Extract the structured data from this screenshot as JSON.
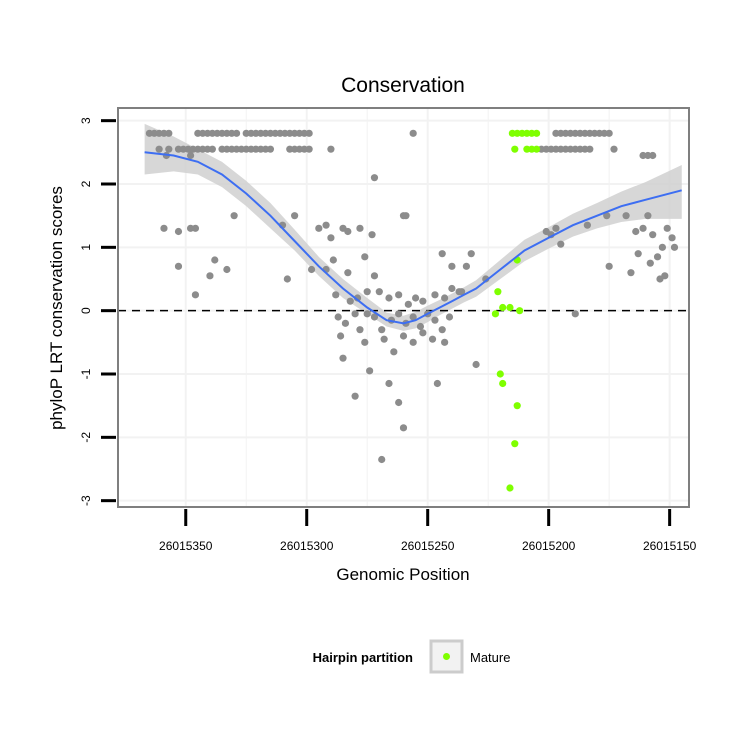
{
  "chart_data": {
    "type": "scatter",
    "title": "Conservation",
    "xlabel": "Genomic Position",
    "ylabel": "phyloP LRT conservation scores",
    "x_reversed": true,
    "xlim": [
      26015378,
      26015142
    ],
    "ylim": [
      -3.1,
      3.2
    ],
    "x_ticks": [
      26015350,
      26015300,
      26015250,
      26015200,
      26015150
    ],
    "x_tick_labels": [
      "26015350",
      "26015300",
      "26015250",
      "26015200",
      "26015150"
    ],
    "y_ticks": [
      -3,
      -2,
      -1,
      0,
      1,
      2,
      3
    ],
    "y_tick_labels": [
      "-3",
      "-2",
      "-1",
      "0",
      "1",
      "2",
      "3"
    ],
    "reference_line": {
      "y": 0,
      "style": "dashed"
    },
    "colors": {
      "hairpin": "#8c8c8c",
      "mature": "#7fff00",
      "smooth_line": "#3d6ef2",
      "ribbon": "#d0d0d0",
      "panel_border": "#7f7f7f",
      "grid": "#f2f2f2"
    },
    "legend": {
      "title": "Hairpin partition",
      "entries": [
        {
          "label": "Mature",
          "color": "#7fff00"
        }
      ],
      "position": "bottom"
    },
    "series": [
      {
        "name": "Hairpin",
        "points": [
          [
            26015365,
            2.8
          ],
          [
            26015363,
            2.8
          ],
          [
            26015361,
            2.8
          ],
          [
            26015359,
            2.8
          ],
          [
            26015357,
            2.8
          ],
          [
            26015345,
            2.8
          ],
          [
            26015343,
            2.8
          ],
          [
            26015341,
            2.8
          ],
          [
            26015339,
            2.8
          ],
          [
            26015337,
            2.8
          ],
          [
            26015335,
            2.8
          ],
          [
            26015333,
            2.8
          ],
          [
            26015331,
            2.8
          ],
          [
            26015329,
            2.8
          ],
          [
            26015325,
            2.8
          ],
          [
            26015323,
            2.8
          ],
          [
            26015321,
            2.8
          ],
          [
            26015319,
            2.8
          ],
          [
            26015317,
            2.8
          ],
          [
            26015315,
            2.8
          ],
          [
            26015313,
            2.8
          ],
          [
            26015311,
            2.8
          ],
          [
            26015309,
            2.8
          ],
          [
            26015307,
            2.8
          ],
          [
            26015305,
            2.8
          ],
          [
            26015303,
            2.8
          ],
          [
            26015301,
            2.8
          ],
          [
            26015299,
            2.8
          ],
          [
            26015256,
            2.8
          ],
          [
            26015197,
            2.8
          ],
          [
            26015195,
            2.8
          ],
          [
            26015193,
            2.8
          ],
          [
            26015191,
            2.8
          ],
          [
            26015189,
            2.8
          ],
          [
            26015187,
            2.8
          ],
          [
            26015185,
            2.8
          ],
          [
            26015183,
            2.8
          ],
          [
            26015181,
            2.8
          ],
          [
            26015179,
            2.8
          ],
          [
            26015177,
            2.8
          ],
          [
            26015175,
            2.8
          ],
          [
            26015361,
            2.55
          ],
          [
            26015357,
            2.55
          ],
          [
            26015353,
            2.55
          ],
          [
            26015351,
            2.55
          ],
          [
            26015349,
            2.55
          ],
          [
            26015347,
            2.55
          ],
          [
            26015345,
            2.55
          ],
          [
            26015343,
            2.55
          ],
          [
            26015341,
            2.55
          ],
          [
            26015339,
            2.55
          ],
          [
            26015335,
            2.55
          ],
          [
            26015333,
            2.55
          ],
          [
            26015331,
            2.55
          ],
          [
            26015329,
            2.55
          ],
          [
            26015327,
            2.55
          ],
          [
            26015325,
            2.55
          ],
          [
            26015323,
            2.55
          ],
          [
            26015321,
            2.55
          ],
          [
            26015319,
            2.55
          ],
          [
            26015317,
            2.55
          ],
          [
            26015315,
            2.55
          ],
          [
            26015307,
            2.55
          ],
          [
            26015305,
            2.55
          ],
          [
            26015303,
            2.55
          ],
          [
            26015301,
            2.55
          ],
          [
            26015299,
            2.55
          ],
          [
            26015290,
            2.55
          ],
          [
            26015203,
            2.55
          ],
          [
            26015201,
            2.55
          ],
          [
            26015199,
            2.55
          ],
          [
            26015197,
            2.55
          ],
          [
            26015195,
            2.55
          ],
          [
            26015193,
            2.55
          ],
          [
            26015191,
            2.55
          ],
          [
            26015189,
            2.55
          ],
          [
            26015187,
            2.55
          ],
          [
            26015185,
            2.55
          ],
          [
            26015183,
            2.55
          ],
          [
            26015173,
            2.55
          ],
          [
            26015161,
            2.45
          ],
          [
            26015159,
            2.45
          ],
          [
            26015157,
            2.45
          ],
          [
            26015358,
            2.45
          ],
          [
            26015272,
            2.1
          ],
          [
            26015348,
            2.45
          ],
          [
            26015359,
            1.3
          ],
          [
            26015353,
            1.25
          ],
          [
            26015348,
            1.3
          ],
          [
            26015346,
            1.3
          ],
          [
            26015330,
            1.5
          ],
          [
            26015310,
            1.35
          ],
          [
            26015305,
            1.5
          ],
          [
            26015295,
            1.3
          ],
          [
            26015292,
            1.35
          ],
          [
            26015290,
            1.15
          ],
          [
            26015285,
            1.3
          ],
          [
            26015283,
            1.25
          ],
          [
            26015278,
            1.3
          ],
          [
            26015273,
            1.2
          ],
          [
            26015353,
            0.7
          ],
          [
            26015340,
            0.55
          ],
          [
            26015338,
            0.8
          ],
          [
            26015333,
            0.65
          ],
          [
            26015346,
            0.25
          ],
          [
            26015308,
            0.5
          ],
          [
            26015298,
            0.65
          ],
          [
            26015292,
            0.65
          ],
          [
            26015289,
            0.8
          ],
          [
            26015283,
            0.6
          ],
          [
            26015276,
            0.85
          ],
          [
            26015272,
            0.55
          ],
          [
            26015260,
            1.5
          ],
          [
            26015259,
            1.5
          ],
          [
            26015244,
            0.9
          ],
          [
            26015240,
            0.7
          ],
          [
            26015237,
            0.3
          ],
          [
            26015288,
            0.25
          ],
          [
            26015282,
            0.15
          ],
          [
            26015279,
            0.2
          ],
          [
            26015275,
            0.3
          ],
          [
            26015270,
            0.3
          ],
          [
            26015266,
            0.2
          ],
          [
            26015262,
            0.25
          ],
          [
            26015258,
            0.1
          ],
          [
            26015255,
            0.2
          ],
          [
            26015252,
            0.15
          ],
          [
            26015247,
            0.25
          ],
          [
            26015243,
            0.2
          ],
          [
            26015240,
            0.35
          ],
          [
            26015287,
            -0.1
          ],
          [
            26015284,
            -0.2
          ],
          [
            26015280,
            -0.05
          ],
          [
            26015278,
            -0.3
          ],
          [
            26015275,
            -0.05
          ],
          [
            26015272,
            -0.1
          ],
          [
            26015269,
            -0.3
          ],
          [
            26015265,
            -0.15
          ],
          [
            26015262,
            -0.05
          ],
          [
            26015259,
            -0.2
          ],
          [
            26015256,
            -0.1
          ],
          [
            26015253,
            -0.25
          ],
          [
            26015250,
            -0.05
          ],
          [
            26015247,
            -0.15
          ],
          [
            26015244,
            -0.3
          ],
          [
            26015241,
            -0.1
          ],
          [
            26015286,
            -0.4
          ],
          [
            26015276,
            -0.5
          ],
          [
            26015268,
            -0.45
          ],
          [
            26015264,
            -0.65
          ],
          [
            26015260,
            -0.4
          ],
          [
            26015256,
            -0.5
          ],
          [
            26015252,
            -0.35
          ],
          [
            26015248,
            -0.45
          ],
          [
            26015243,
            -0.5
          ],
          [
            26015285,
            -0.75
          ],
          [
            26015274,
            -0.95
          ],
          [
            26015266,
            -1.15
          ],
          [
            26015262,
            -1.45
          ],
          [
            26015260,
            -1.85
          ],
          [
            26015269,
            -2.35
          ],
          [
            26015280,
            -1.35
          ],
          [
            26015246,
            -1.15
          ],
          [
            26015230,
            -0.85
          ],
          [
            26015236,
            0.3
          ],
          [
            26015234,
            0.7
          ],
          [
            26015232,
            0.9
          ],
          [
            26015226,
            0.5
          ],
          [
            26015201,
            1.25
          ],
          [
            26015199,
            1.2
          ],
          [
            26015197,
            1.3
          ],
          [
            26015195,
            1.05
          ],
          [
            26015189,
            -0.05
          ],
          [
            26015184,
            1.35
          ],
          [
            26015176,
            1.5
          ],
          [
            26015175,
            0.7
          ],
          [
            26015168,
            1.5
          ],
          [
            26015166,
            0.6
          ],
          [
            26015164,
            1.25
          ],
          [
            26015161,
            1.3
          ],
          [
            26015159,
            1.5
          ],
          [
            26015157,
            1.2
          ],
          [
            26015155,
            0.85
          ],
          [
            26015153,
            1.0
          ],
          [
            26015151,
            1.3
          ],
          [
            26015149,
            1.15
          ],
          [
            26015148,
            1.0
          ],
          [
            26015163,
            0.9
          ],
          [
            26015158,
            0.75
          ],
          [
            26015154,
            0.5
          ],
          [
            26015152,
            0.55
          ]
        ]
      },
      {
        "name": "Mature",
        "points": [
          [
            26015215,
            2.8
          ],
          [
            26015213,
            2.8
          ],
          [
            26015211,
            2.8
          ],
          [
            26015209,
            2.8
          ],
          [
            26015207,
            2.8
          ],
          [
            26015205,
            2.8
          ],
          [
            26015214,
            2.55
          ],
          [
            26015209,
            2.55
          ],
          [
            26015207,
            2.55
          ],
          [
            26015205,
            2.55
          ],
          [
            26015213,
            0.8
          ],
          [
            26015221,
            0.3
          ],
          [
            26015219,
            0.05
          ],
          [
            26015216,
            0.05
          ],
          [
            26015212,
            0.0
          ],
          [
            26015222,
            -0.05
          ],
          [
            26015220,
            -1.0
          ],
          [
            26015219,
            -1.15
          ],
          [
            26015213,
            -1.5
          ],
          [
            26015214,
            -2.1
          ],
          [
            26015216,
            -2.8
          ]
        ]
      }
    ],
    "smooth_curve": {
      "x": [
        26015367,
        26015355,
        26015345,
        26015335,
        26015325,
        26015315,
        26015305,
        26015295,
        26015285,
        26015275,
        26015267,
        26015260,
        26015255,
        26015250,
        26015245,
        26015240,
        26015235,
        26015230,
        26015225,
        26015220,
        26015215,
        26015210,
        26015200,
        26015190,
        26015180,
        26015170,
        26015160,
        26015145
      ],
      "y": [
        2.5,
        2.45,
        2.35,
        2.15,
        1.85,
        1.5,
        1.1,
        0.7,
        0.35,
        0.05,
        -0.15,
        -0.2,
        -0.15,
        -0.05,
        0.05,
        0.15,
        0.25,
        0.35,
        0.5,
        0.65,
        0.8,
        0.95,
        1.15,
        1.35,
        1.5,
        1.65,
        1.75,
        1.9
      ],
      "ribbon_lower": [
        2.15,
        2.2,
        2.15,
        1.95,
        1.65,
        1.3,
        0.95,
        0.55,
        0.2,
        -0.05,
        -0.25,
        -0.32,
        -0.28,
        -0.18,
        -0.07,
        0.03,
        0.13,
        0.22,
        0.36,
        0.5,
        0.64,
        0.78,
        0.98,
        1.17,
        1.3,
        1.4,
        1.45,
        1.45
      ],
      "ribbon_upper": [
        2.95,
        2.75,
        2.55,
        2.35,
        2.05,
        1.7,
        1.28,
        0.85,
        0.5,
        0.2,
        -0.03,
        -0.08,
        -0.02,
        0.08,
        0.17,
        0.27,
        0.37,
        0.48,
        0.64,
        0.8,
        0.96,
        1.12,
        1.32,
        1.53,
        1.7,
        1.88,
        2.03,
        2.3
      ]
    }
  }
}
